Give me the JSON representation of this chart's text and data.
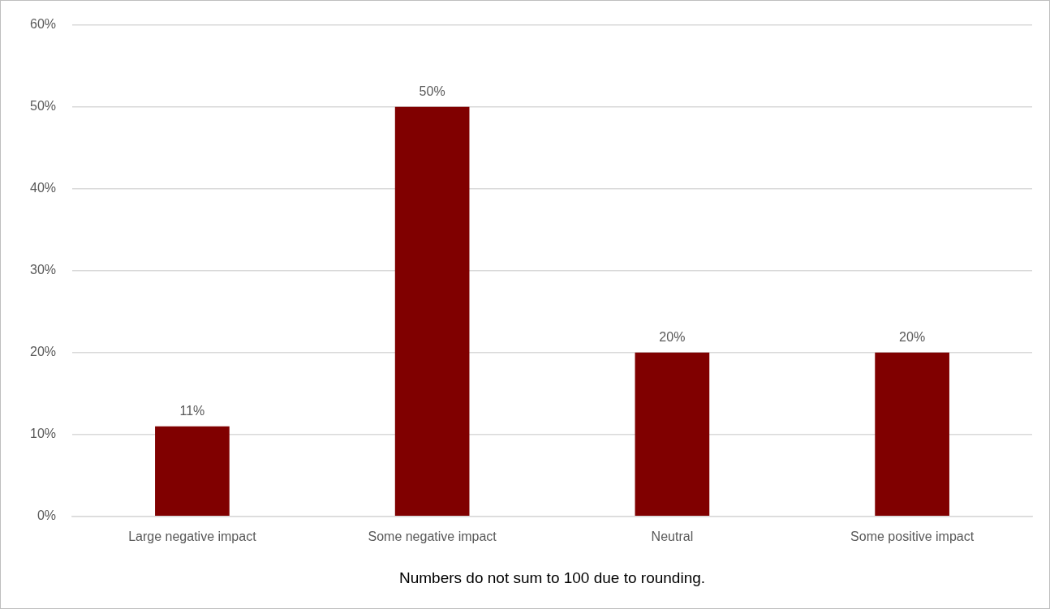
{
  "chart_data": {
    "type": "bar",
    "categories": [
      "Large negative impact",
      "Some negative impact",
      "Neutral",
      "Some positive impact"
    ],
    "values": [
      11,
      50,
      20,
      20
    ],
    "color": "#800000",
    "value_labels": [
      "11%",
      "50%",
      "20%",
      "20%"
    ],
    "ylim": [
      0,
      60
    ],
    "yticks": [
      {
        "value": 0,
        "label": "0%"
      },
      {
        "value": 10,
        "label": "10%"
      },
      {
        "value": 20,
        "label": "20%"
      },
      {
        "value": 30,
        "label": "30%"
      },
      {
        "value": 40,
        "label": "40%"
      },
      {
        "value": 50,
        "label": "50%"
      },
      {
        "value": 60,
        "label": "60%"
      }
    ],
    "grid": "y",
    "annotations": [
      "Numbers do not sum to 100 due to rounding."
    ]
  }
}
